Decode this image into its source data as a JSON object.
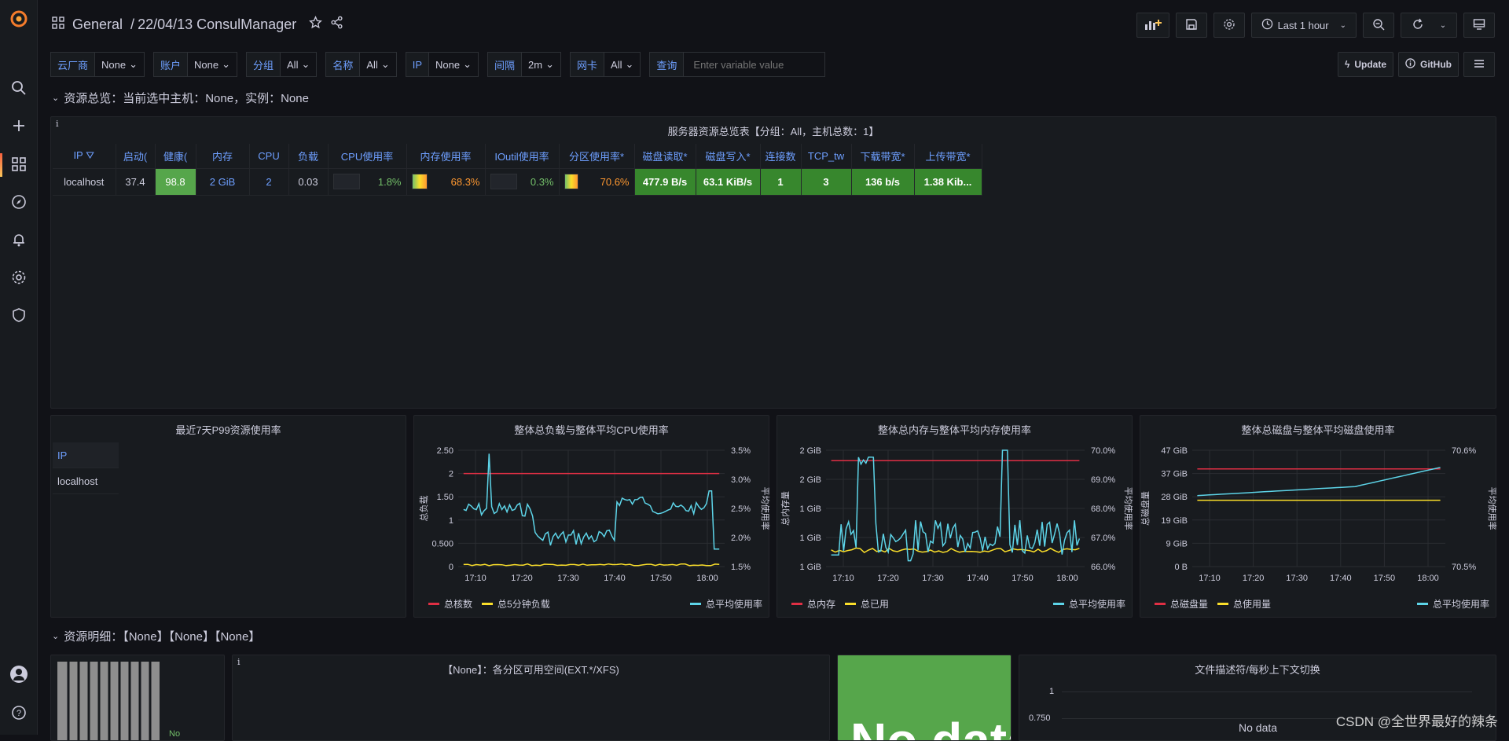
{
  "header": {
    "breadcrumb_root": "General",
    "separator": "/",
    "dashboard_title": "22/04/13 ConsulManager",
    "time_range": "Last 1 hour"
  },
  "variables": [
    {
      "label": "云厂商",
      "value": "None"
    },
    {
      "label": "账户",
      "value": "None"
    },
    {
      "label": "分组",
      "value": "All"
    },
    {
      "label": "名称",
      "value": "All"
    },
    {
      "label": "IP",
      "value": "None"
    },
    {
      "label": "间隔",
      "value": "2m"
    },
    {
      "label": "网卡",
      "value": "All"
    }
  ],
  "query": {
    "label": "查询",
    "placeholder": "Enter variable value"
  },
  "actions": {
    "update": "Update",
    "github": "GitHub"
  },
  "row1": {
    "title": "资源总览：当前选中主机：None，实例：None"
  },
  "table_panel": {
    "title": "服务器资源总览表【分组：All，主机总数：1】",
    "columns": [
      "IP",
      "启动(",
      "健康(",
      "内存",
      "CPU",
      "负载",
      "CPU使用率",
      "内存使用率",
      "IOutil使用率",
      "分区使用率*",
      "磁盘读取*",
      "磁盘写入*",
      "连接数",
      "TCP_tw",
      "下载带宽*",
      "上传带宽*"
    ],
    "row": {
      "ip": "localhost",
      "uptime": "37.4",
      "health": "98.8",
      "mem": "2 GiB",
      "cpu": "2",
      "load": "0.03",
      "cpu_usage": "1.8%",
      "mem_usage": "68.3%",
      "ioutil": "0.3%",
      "part_usage": "70.6%",
      "disk_read": "477.9 B/s",
      "disk_write": "63.1 KiB/s",
      "conns": "1",
      "tcp_tw": "3",
      "download": "136 b/s",
      "upload": "1.38 Kib..."
    }
  },
  "p99_panel": {
    "title": "最近7天P99资源使用率",
    "col": "IP",
    "cell": "localhost"
  },
  "charts": [
    {
      "title": "整体总负载与整体平均CPU使用率",
      "left_label": "总负载",
      "right_label": "平均使用率",
      "left_ticks": [
        "2.50",
        "2",
        "1.50",
        "1",
        "0.500",
        "0"
      ],
      "right_ticks": [
        "3.5%",
        "3.0%",
        "2.5%",
        "2.0%",
        "1.5%"
      ],
      "x_ticks": [
        "17:10",
        "17:20",
        "17:30",
        "17:40",
        "17:50",
        "18:00"
      ],
      "legend_left": [
        {
          "name": "总核数",
          "color": "red"
        },
        {
          "name": "总5分钟负载",
          "color": "yellow"
        }
      ],
      "legend_right": {
        "name": "总平均使用率",
        "color": "cyan"
      }
    },
    {
      "title": "整体总内存与整体平均内存使用率",
      "left_label": "总内存量",
      "right_label": "平均使用率",
      "left_ticks": [
        "2 GiB",
        "2 GiB",
        "1 GiB",
        "1 GiB",
        "1 GiB"
      ],
      "right_ticks": [
        "70.0%",
        "69.0%",
        "68.0%",
        "67.0%",
        "66.0%"
      ],
      "x_ticks": [
        "17:10",
        "17:20",
        "17:30",
        "17:40",
        "17:50",
        "18:00"
      ],
      "legend_left": [
        {
          "name": "总内存",
          "color": "red"
        },
        {
          "name": "总已用",
          "color": "yellow"
        }
      ],
      "legend_right": {
        "name": "总平均使用率",
        "color": "cyan"
      }
    },
    {
      "title": "整体总磁盘与整体平均磁盘使用率",
      "left_label": "总磁盘量",
      "right_label": "平均使用率",
      "left_ticks": [
        "47 GiB",
        "37 GiB",
        "28 GiB",
        "19 GiB",
        "9 GiB",
        "0 B"
      ],
      "right_ticks": [
        "70.6%",
        "70.5%"
      ],
      "x_ticks": [
        "17:10",
        "17:20",
        "17:30",
        "17:40",
        "17:50",
        "18:00"
      ],
      "legend_left": [
        {
          "name": "总磁盘量",
          "color": "red"
        },
        {
          "name": "总使用量",
          "color": "yellow"
        }
      ],
      "legend_right": {
        "name": "总平均使用率",
        "color": "cyan"
      }
    }
  ],
  "row2": {
    "title": "资源明细：【None】【None】【None】"
  },
  "partition_panel": {
    "title": "【None】：各分区可用空间(EXT.*/XFS)"
  },
  "bar_panel": {
    "label": "No"
  },
  "nodata_panel": {
    "text": "No data"
  },
  "fd_panel": {
    "title": "文件描述符/每秒上下文切换",
    "ticks": [
      "1",
      "0.750"
    ],
    "nodata": "No data"
  },
  "watermark": "CSDN @全世界最好的辣条",
  "colors": {
    "bg": "#111217",
    "panel": "#181b1f",
    "accent": "#6e9fff",
    "green": "#37872d",
    "red": "#e02f44",
    "yellow": "#fade2a",
    "cyan": "#5dd4e8"
  }
}
